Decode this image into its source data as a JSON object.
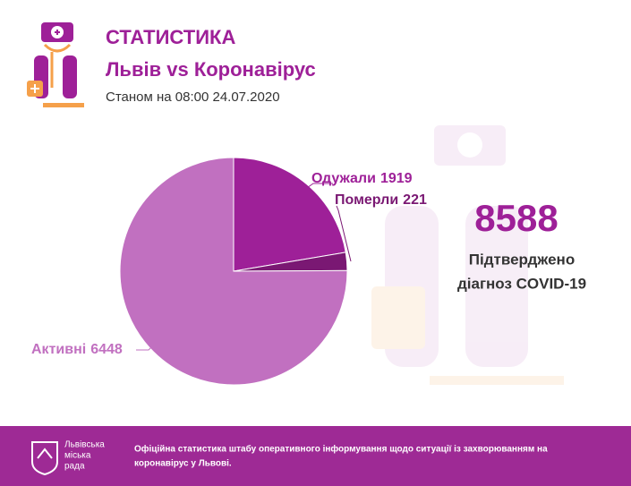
{
  "header": {
    "title": "СТАТИСТИКА",
    "subtitle": "Львів vs Коронавірус",
    "date_line": "Станом на 08:00 24.07.2020"
  },
  "chart_data": {
    "type": "pie",
    "categories": [
      "Одужали",
      "Померли",
      "Активні"
    ],
    "values": [
      1919,
      221,
      6448
    ],
    "colors": [
      "#9e2098",
      "#7a1873",
      "#c170c0"
    ]
  },
  "summary": {
    "total": 8588,
    "label_lines": [
      "Підтверджено",
      "діагноз COVID-19"
    ]
  },
  "footer": {
    "logo_lines": [
      "Львівська",
      "міська",
      "рада"
    ],
    "text_lines": [
      "Офіційна статистика штабу оперативного інформування щодо ситуації із захворюванням на",
      "коронавірус у Львові."
    ]
  }
}
